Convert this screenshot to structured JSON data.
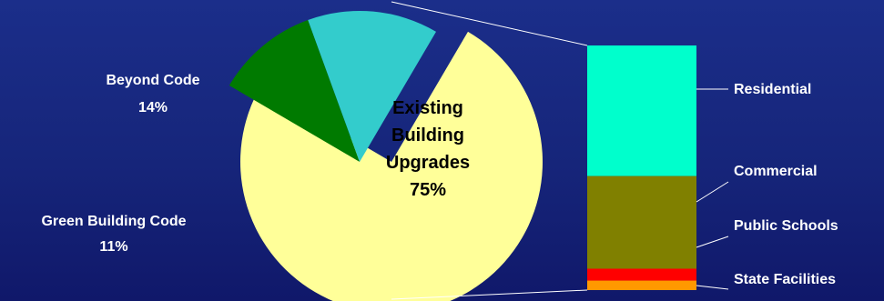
{
  "chart_data": [
    {
      "type": "pie",
      "title": "",
      "slices": [
        {
          "name": "Existing Building Upgrades",
          "label_lines": [
            "Existing",
            "Building",
            "Upgrades"
          ],
          "pct_label": "75%",
          "value": 75,
          "color": "#ffff99"
        },
        {
          "name": "Green Building Code",
          "label_lines": [
            "Green Building Code"
          ],
          "pct_label": "11%",
          "value": 11,
          "color": "#007a00"
        },
        {
          "name": "Beyond Code",
          "label_lines": [
            "Beyond Code"
          ],
          "pct_label": "14%",
          "value": 14,
          "color": "#33cccc"
        }
      ],
      "exploded_slice": "Existing Building Upgrades"
    },
    {
      "type": "bar",
      "stacked": true,
      "parent": "Existing Building Upgrades",
      "segments": [
        {
          "name": "Residential",
          "value": 55,
          "color": "#00ffcc"
        },
        {
          "name": "Commercial",
          "value": 39,
          "color": "#808000"
        },
        {
          "name": "Public Schools",
          "value": 5,
          "color": "#ff0000"
        },
        {
          "name": "State Facilities",
          "value": 4,
          "color": "#ff9900"
        }
      ]
    }
  ],
  "colors": {
    "background": "#16257a",
    "label_text": "#ffffff",
    "inside_label_text": "#000000",
    "connector": "#ffffff"
  }
}
